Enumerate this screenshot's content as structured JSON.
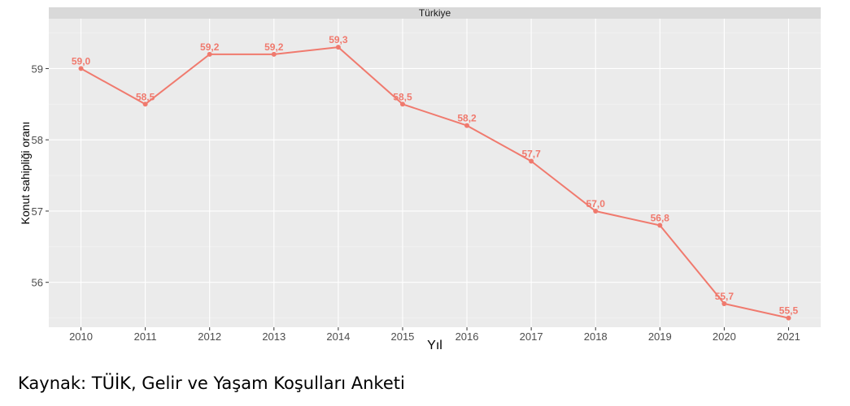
{
  "chart_data": {
    "type": "line",
    "facet_title": "Türkiye",
    "xlabel": "Yıl",
    "ylabel": "Konut sahipliği oranı",
    "x": [
      "2010",
      "2011",
      "2012",
      "2013",
      "2014",
      "2015",
      "2016",
      "2017",
      "2018",
      "2019",
      "2020",
      "2021"
    ],
    "series": [
      {
        "values": [
          59.0,
          58.5,
          59.2,
          59.2,
          59.3,
          58.5,
          58.2,
          57.7,
          57.0,
          56.8,
          55.7,
          55.5
        ],
        "labels": [
          "59,0",
          "58,5",
          "59,2",
          "59,2",
          "59,3",
          "58,5",
          "58,2",
          "57,7",
          "57,0",
          "56,8",
          "55,7",
          "55,5"
        ],
        "color": "#F07A6E"
      }
    ],
    "yticks": [
      56,
      57,
      58,
      59
    ],
    "ylim": [
      55.37,
      59.7
    ],
    "grid": true,
    "panel_bg": "#EBEBEB",
    "strip_bg": "#D9D9D9"
  },
  "source": "Kaynak: TÜİK, Gelir ve Yaşam Koşulları Anketi"
}
